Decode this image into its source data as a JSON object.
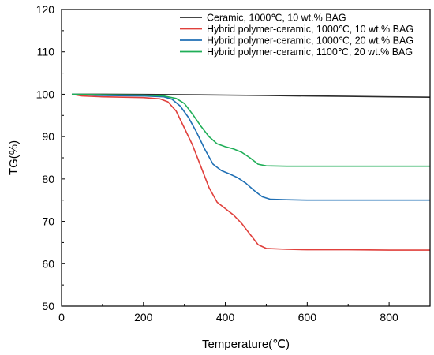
{
  "chart_data": {
    "type": "line",
    "title": "",
    "xlabel": "Temperature(℃)",
    "ylabel": "TG(%)",
    "xlim": [
      0,
      900
    ],
    "ylim": [
      50,
      120
    ],
    "xticks": [
      0,
      200,
      400,
      600,
      800
    ],
    "yticks": [
      50,
      60,
      70,
      80,
      90,
      100,
      110,
      120
    ],
    "grid": false,
    "legend_position": "top-right",
    "series": [
      {
        "name": "Ceramic, 1000℃, 10 wt.% BAG",
        "color": "#2b2b2b",
        "points": [
          [
            25,
            100
          ],
          [
            100,
            100
          ],
          [
            200,
            99.95
          ],
          [
            300,
            99.9
          ],
          [
            400,
            99.8
          ],
          [
            500,
            99.7
          ],
          [
            600,
            99.6
          ],
          [
            700,
            99.5
          ],
          [
            800,
            99.4
          ],
          [
            900,
            99.3
          ]
        ]
      },
      {
        "name": "Hybrid polymer-ceramic, 1000℃, 10 wt.% BAG",
        "color": "#e0403c",
        "points": [
          [
            25,
            100
          ],
          [
            50,
            99.6
          ],
          [
            100,
            99.4
          ],
          [
            150,
            99.3
          ],
          [
            200,
            99.2
          ],
          [
            240,
            98.9
          ],
          [
            260,
            98.2
          ],
          [
            280,
            96
          ],
          [
            300,
            92
          ],
          [
            320,
            88
          ],
          [
            340,
            83
          ],
          [
            360,
            78
          ],
          [
            380,
            74.5
          ],
          [
            400,
            73
          ],
          [
            420,
            71.5
          ],
          [
            440,
            69.5
          ],
          [
            460,
            67
          ],
          [
            480,
            64.5
          ],
          [
            500,
            63.6
          ],
          [
            550,
            63.4
          ],
          [
            600,
            63.3
          ],
          [
            700,
            63.3
          ],
          [
            800,
            63.2
          ],
          [
            900,
            63.2
          ]
        ]
      },
      {
        "name": "Hybrid polymer-ceramic, 1000℃, 20 wt.% BAG",
        "color": "#1f6fb4",
        "points": [
          [
            25,
            100
          ],
          [
            100,
            99.7
          ],
          [
            200,
            99.6
          ],
          [
            250,
            99.4
          ],
          [
            270,
            98.8
          ],
          [
            290,
            97.2
          ],
          [
            310,
            94.5
          ],
          [
            330,
            91
          ],
          [
            350,
            87
          ],
          [
            370,
            83.5
          ],
          [
            390,
            82
          ],
          [
            410,
            81.2
          ],
          [
            430,
            80.3
          ],
          [
            450,
            79
          ],
          [
            470,
            77.3
          ],
          [
            490,
            75.8
          ],
          [
            510,
            75.2
          ],
          [
            550,
            75.1
          ],
          [
            600,
            75
          ],
          [
            700,
            75
          ],
          [
            800,
            75
          ],
          [
            900,
            75
          ]
        ]
      },
      {
        "name": "Hybrid polymer-ceramic, 1100℃, 20 wt.% BAG",
        "color": "#1fae57",
        "points": [
          [
            25,
            100
          ],
          [
            100,
            99.9
          ],
          [
            200,
            99.8
          ],
          [
            250,
            99.6
          ],
          [
            280,
            99
          ],
          [
            300,
            97.8
          ],
          [
            320,
            95.3
          ],
          [
            340,
            92.5
          ],
          [
            360,
            90
          ],
          [
            380,
            88.3
          ],
          [
            400,
            87.6
          ],
          [
            420,
            87.1
          ],
          [
            440,
            86.3
          ],
          [
            460,
            85
          ],
          [
            480,
            83.5
          ],
          [
            500,
            83.1
          ],
          [
            550,
            83
          ],
          [
            600,
            83
          ],
          [
            700,
            83
          ],
          [
            800,
            83
          ],
          [
            900,
            83
          ]
        ]
      }
    ]
  }
}
